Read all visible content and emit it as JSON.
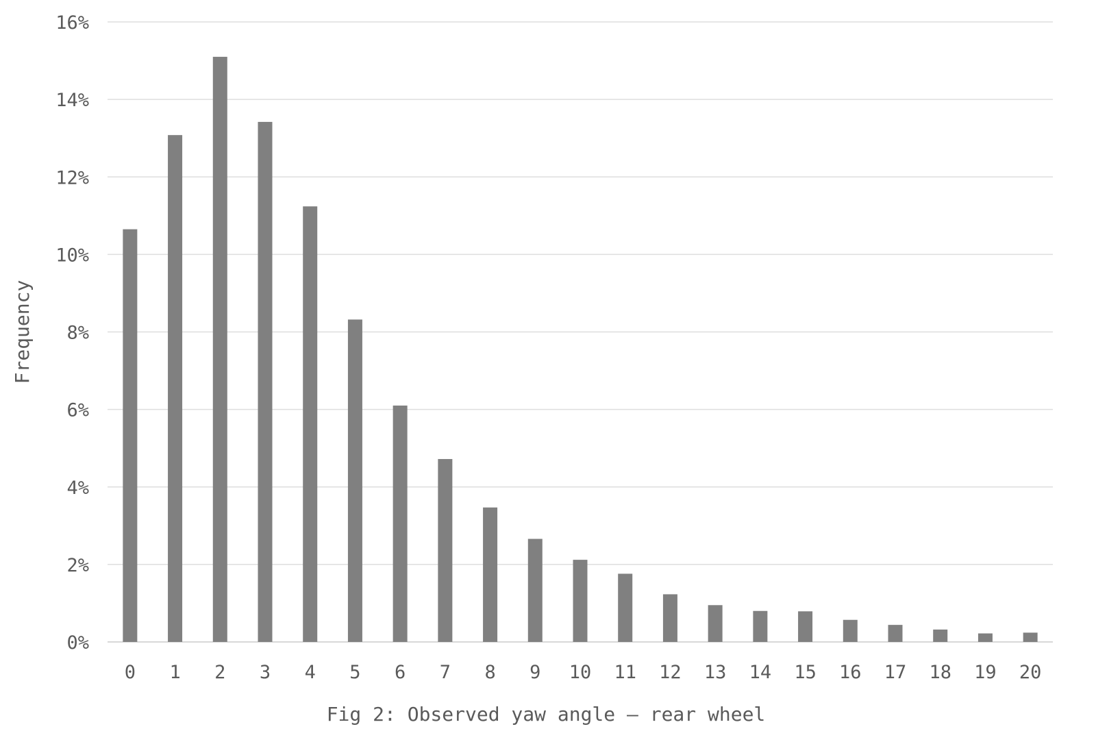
{
  "chart_data": {
    "type": "bar",
    "title": "",
    "xlabel": "Fig 2: Observed yaw angle — rear wheel",
    "ylabel": "Frequency",
    "ylim": [
      0,
      16
    ],
    "y_unit": "%",
    "y_ticks": [
      "0%",
      "2%",
      "4%",
      "6%",
      "8%",
      "10%",
      "12%",
      "14%",
      "16%"
    ],
    "y_tick_values": [
      0,
      2,
      4,
      6,
      8,
      10,
      12,
      14,
      16
    ],
    "categories": [
      "0",
      "1",
      "2",
      "3",
      "4",
      "5",
      "6",
      "7",
      "8",
      "9",
      "10",
      "11",
      "12",
      "13",
      "14",
      "15",
      "16",
      "17",
      "18",
      "19",
      "20"
    ],
    "series": [
      {
        "values": [
          10.65,
          13.08,
          15.1,
          13.42,
          11.24,
          8.32,
          6.1,
          4.72,
          3.47,
          2.66,
          2.12,
          1.76,
          1.23,
          0.95,
          0.8,
          0.79,
          0.57,
          0.44,
          0.32,
          0.22,
          0.24
        ],
        "color": "#808080"
      }
    ],
    "grid": true,
    "legend": "none"
  }
}
